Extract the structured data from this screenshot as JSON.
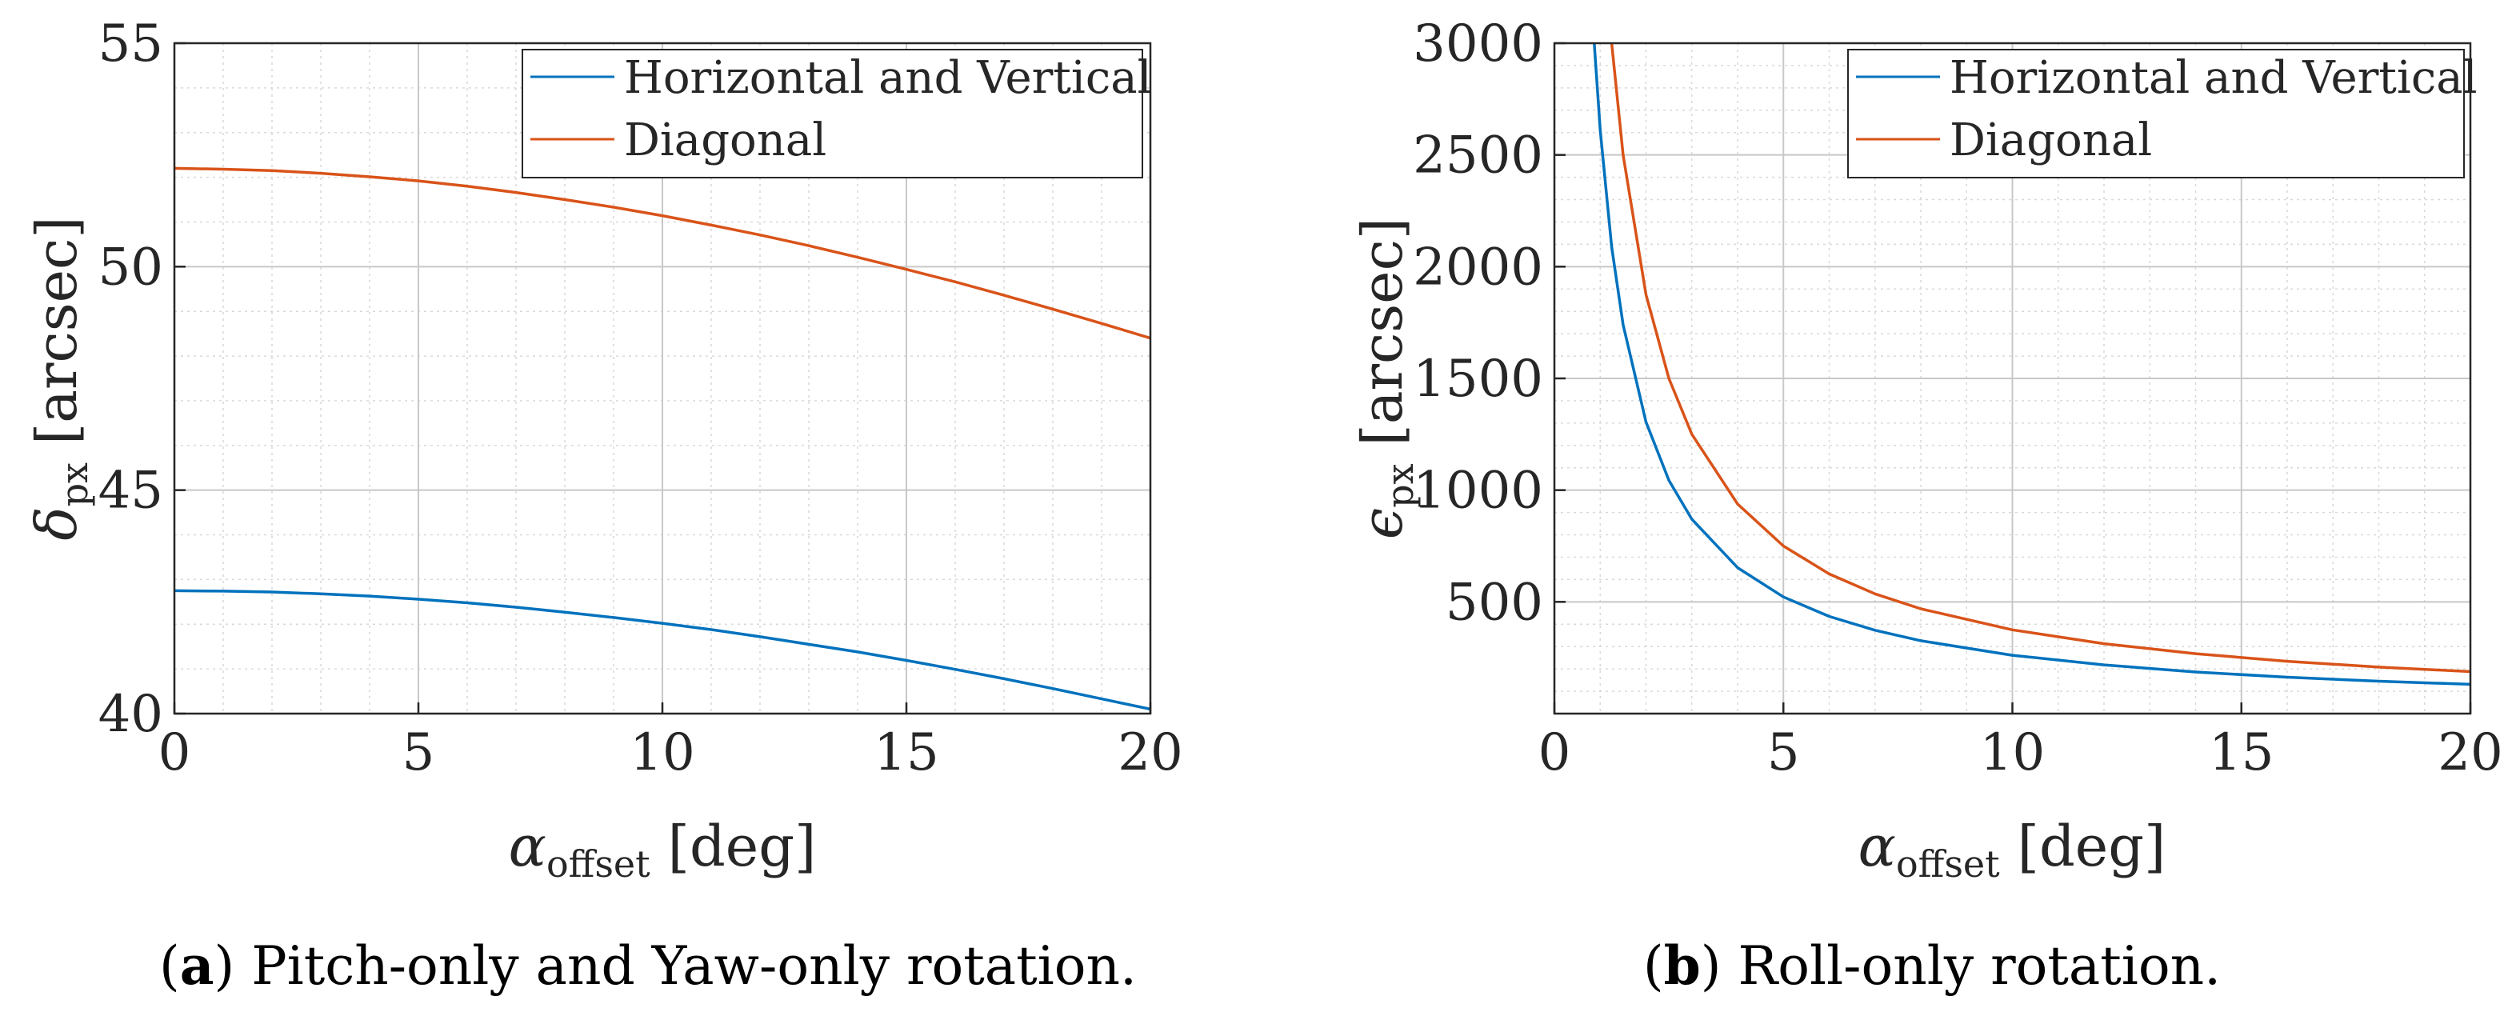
{
  "chart_data": [
    {
      "type": "line",
      "panel_id": "a",
      "title": "",
      "xlabel_main": "α",
      "xlabel_sub": "offset",
      "xlabel_unit": "[deg]",
      "ylabel_main": "δ",
      "ylabel_sub": "px",
      "ylabel_unit": "[arcsec]",
      "xlim": [
        0,
        20
      ],
      "ylim": [
        40,
        55
      ],
      "xticks": [
        0,
        5,
        10,
        15,
        20
      ],
      "yticks": [
        40,
        45,
        50,
        55
      ],
      "xtick_labels": [
        "0",
        "5",
        "10",
        "15",
        "20"
      ],
      "ytick_labels": [
        "40",
        "45",
        "50",
        "55"
      ],
      "grid": true,
      "legend_position": "top-right",
      "caption_label": "a",
      "caption_text": "Pitch-only and Yaw-only rotation.",
      "series": [
        {
          "name": "Horizontal and Vertical",
          "color": "#0072BD",
          "x": [
            0,
            1,
            2,
            3,
            4,
            5,
            6,
            7,
            8,
            9,
            10,
            11,
            12,
            13,
            14,
            15,
            16,
            17,
            18,
            19,
            20
          ],
          "y": [
            42.75,
            42.74,
            42.72,
            42.68,
            42.63,
            42.56,
            42.48,
            42.38,
            42.27,
            42.15,
            42.02,
            41.88,
            41.72,
            41.55,
            41.38,
            41.19,
            40.99,
            40.78,
            40.56,
            40.33,
            40.1
          ]
        },
        {
          "name": "Diagonal",
          "color": "#D95319",
          "x": [
            0,
            1,
            2,
            3,
            4,
            5,
            6,
            7,
            8,
            9,
            10,
            11,
            12,
            13,
            14,
            15,
            16,
            17,
            18,
            19,
            20
          ],
          "y": [
            52.2,
            52.18,
            52.15,
            52.09,
            52.01,
            51.92,
            51.8,
            51.66,
            51.5,
            51.33,
            51.14,
            50.93,
            50.71,
            50.47,
            50.21,
            49.94,
            49.66,
            49.36,
            49.05,
            48.73,
            48.4
          ]
        }
      ]
    },
    {
      "type": "line",
      "panel_id": "b",
      "title": "",
      "xlabel_main": "α",
      "xlabel_sub": "offset",
      "xlabel_unit": "[deg]",
      "ylabel_main": "ϵ",
      "ylabel_sub": "px",
      "ylabel_unit": "[arcsec]",
      "xlim": [
        0,
        20
      ],
      "ylim": [
        0,
        3000
      ],
      "xticks": [
        0,
        5,
        10,
        15,
        20
      ],
      "yticks": [
        500,
        1000,
        1500,
        2000,
        2500,
        3000
      ],
      "xtick_labels": [
        "0",
        "5",
        "10",
        "15",
        "20"
      ],
      "ytick_labels": [
        "500",
        "1000",
        "1500",
        "2000",
        "2500",
        "3000"
      ],
      "grid": true,
      "legend_position": "top-right",
      "caption_label": "b",
      "caption_text": "Roll-only rotation.",
      "series": [
        {
          "name": "Horizontal and Vertical",
          "color": "#0072BD",
          "x": [
            0.87,
            1,
            1.25,
            1.5,
            2,
            2.5,
            3,
            4,
            5,
            6,
            7,
            8,
            10,
            12,
            14,
            16,
            18,
            20
          ],
          "y": [
            3000,
            2610,
            2088,
            1740,
            1305,
            1044,
            870,
            653,
            522,
            435,
            373,
            326,
            261,
            218,
            186,
            163,
            145,
            131
          ]
        },
        {
          "name": "Diagonal",
          "color": "#D95319",
          "x": [
            1.25,
            1.5,
            2,
            2.5,
            3,
            4,
            5,
            6,
            7,
            8,
            10,
            12,
            14,
            16,
            18,
            20
          ],
          "y": [
            3000,
            2500,
            1875,
            1500,
            1250,
            938,
            750,
            625,
            536,
            469,
            375,
            313,
            268,
            234,
            208,
            188
          ]
        }
      ]
    }
  ]
}
